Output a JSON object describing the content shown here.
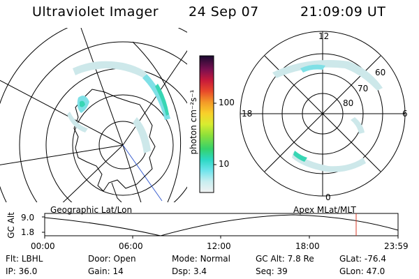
{
  "header": {
    "title": "Ultraviolet Imager",
    "date": "24 Sep 07",
    "time": "21:09:09 UT"
  },
  "colorbar": {
    "unit_label": "photon cm⁻²s⁻¹",
    "ticks": [
      "100",
      "10"
    ]
  },
  "polar_plot": {
    "clock_labels": {
      "top": "12",
      "left": "18",
      "right": "6",
      "bottom": "0"
    },
    "lat_labels": [
      "60",
      "70",
      "80"
    ]
  },
  "panel_labels": {
    "left": "Geographic Lat/Lon",
    "right": "Apex MLat/MLT"
  },
  "altitude_plot": {
    "ylabel": "GC Alt",
    "y_ticks": [
      "9.0",
      "1.8"
    ],
    "x_ticks": [
      "00:00",
      "06:00",
      "12:00",
      "18:00",
      "23:59"
    ]
  },
  "footer": {
    "row1": [
      {
        "label": "Flt:",
        "value": "LBHL"
      },
      {
        "label": "Door:",
        "value": "Open"
      },
      {
        "label": "Mode:",
        "value": "Normal"
      },
      {
        "label": "GC Alt:",
        "value": "7.8 Re"
      },
      {
        "label": "GLat:",
        "value": "-76.4"
      }
    ],
    "row2": [
      {
        "label": "IP:",
        "value": "36.0"
      },
      {
        "label": "Gain:",
        "value": "14"
      },
      {
        "label": "Dsp:",
        "value": "3.4"
      },
      {
        "label": "Seq:",
        "value": "39"
      },
      {
        "label": "GLon:",
        "value": "47.0"
      }
    ]
  },
  "colors": {
    "aurora_light": "#cde8ea",
    "aurora_mid": "#7fe0e6",
    "aurora_strong": "#38d6b4",
    "time_marker": "#d83b2a",
    "meridian_blue": "#3a5fd0"
  }
}
